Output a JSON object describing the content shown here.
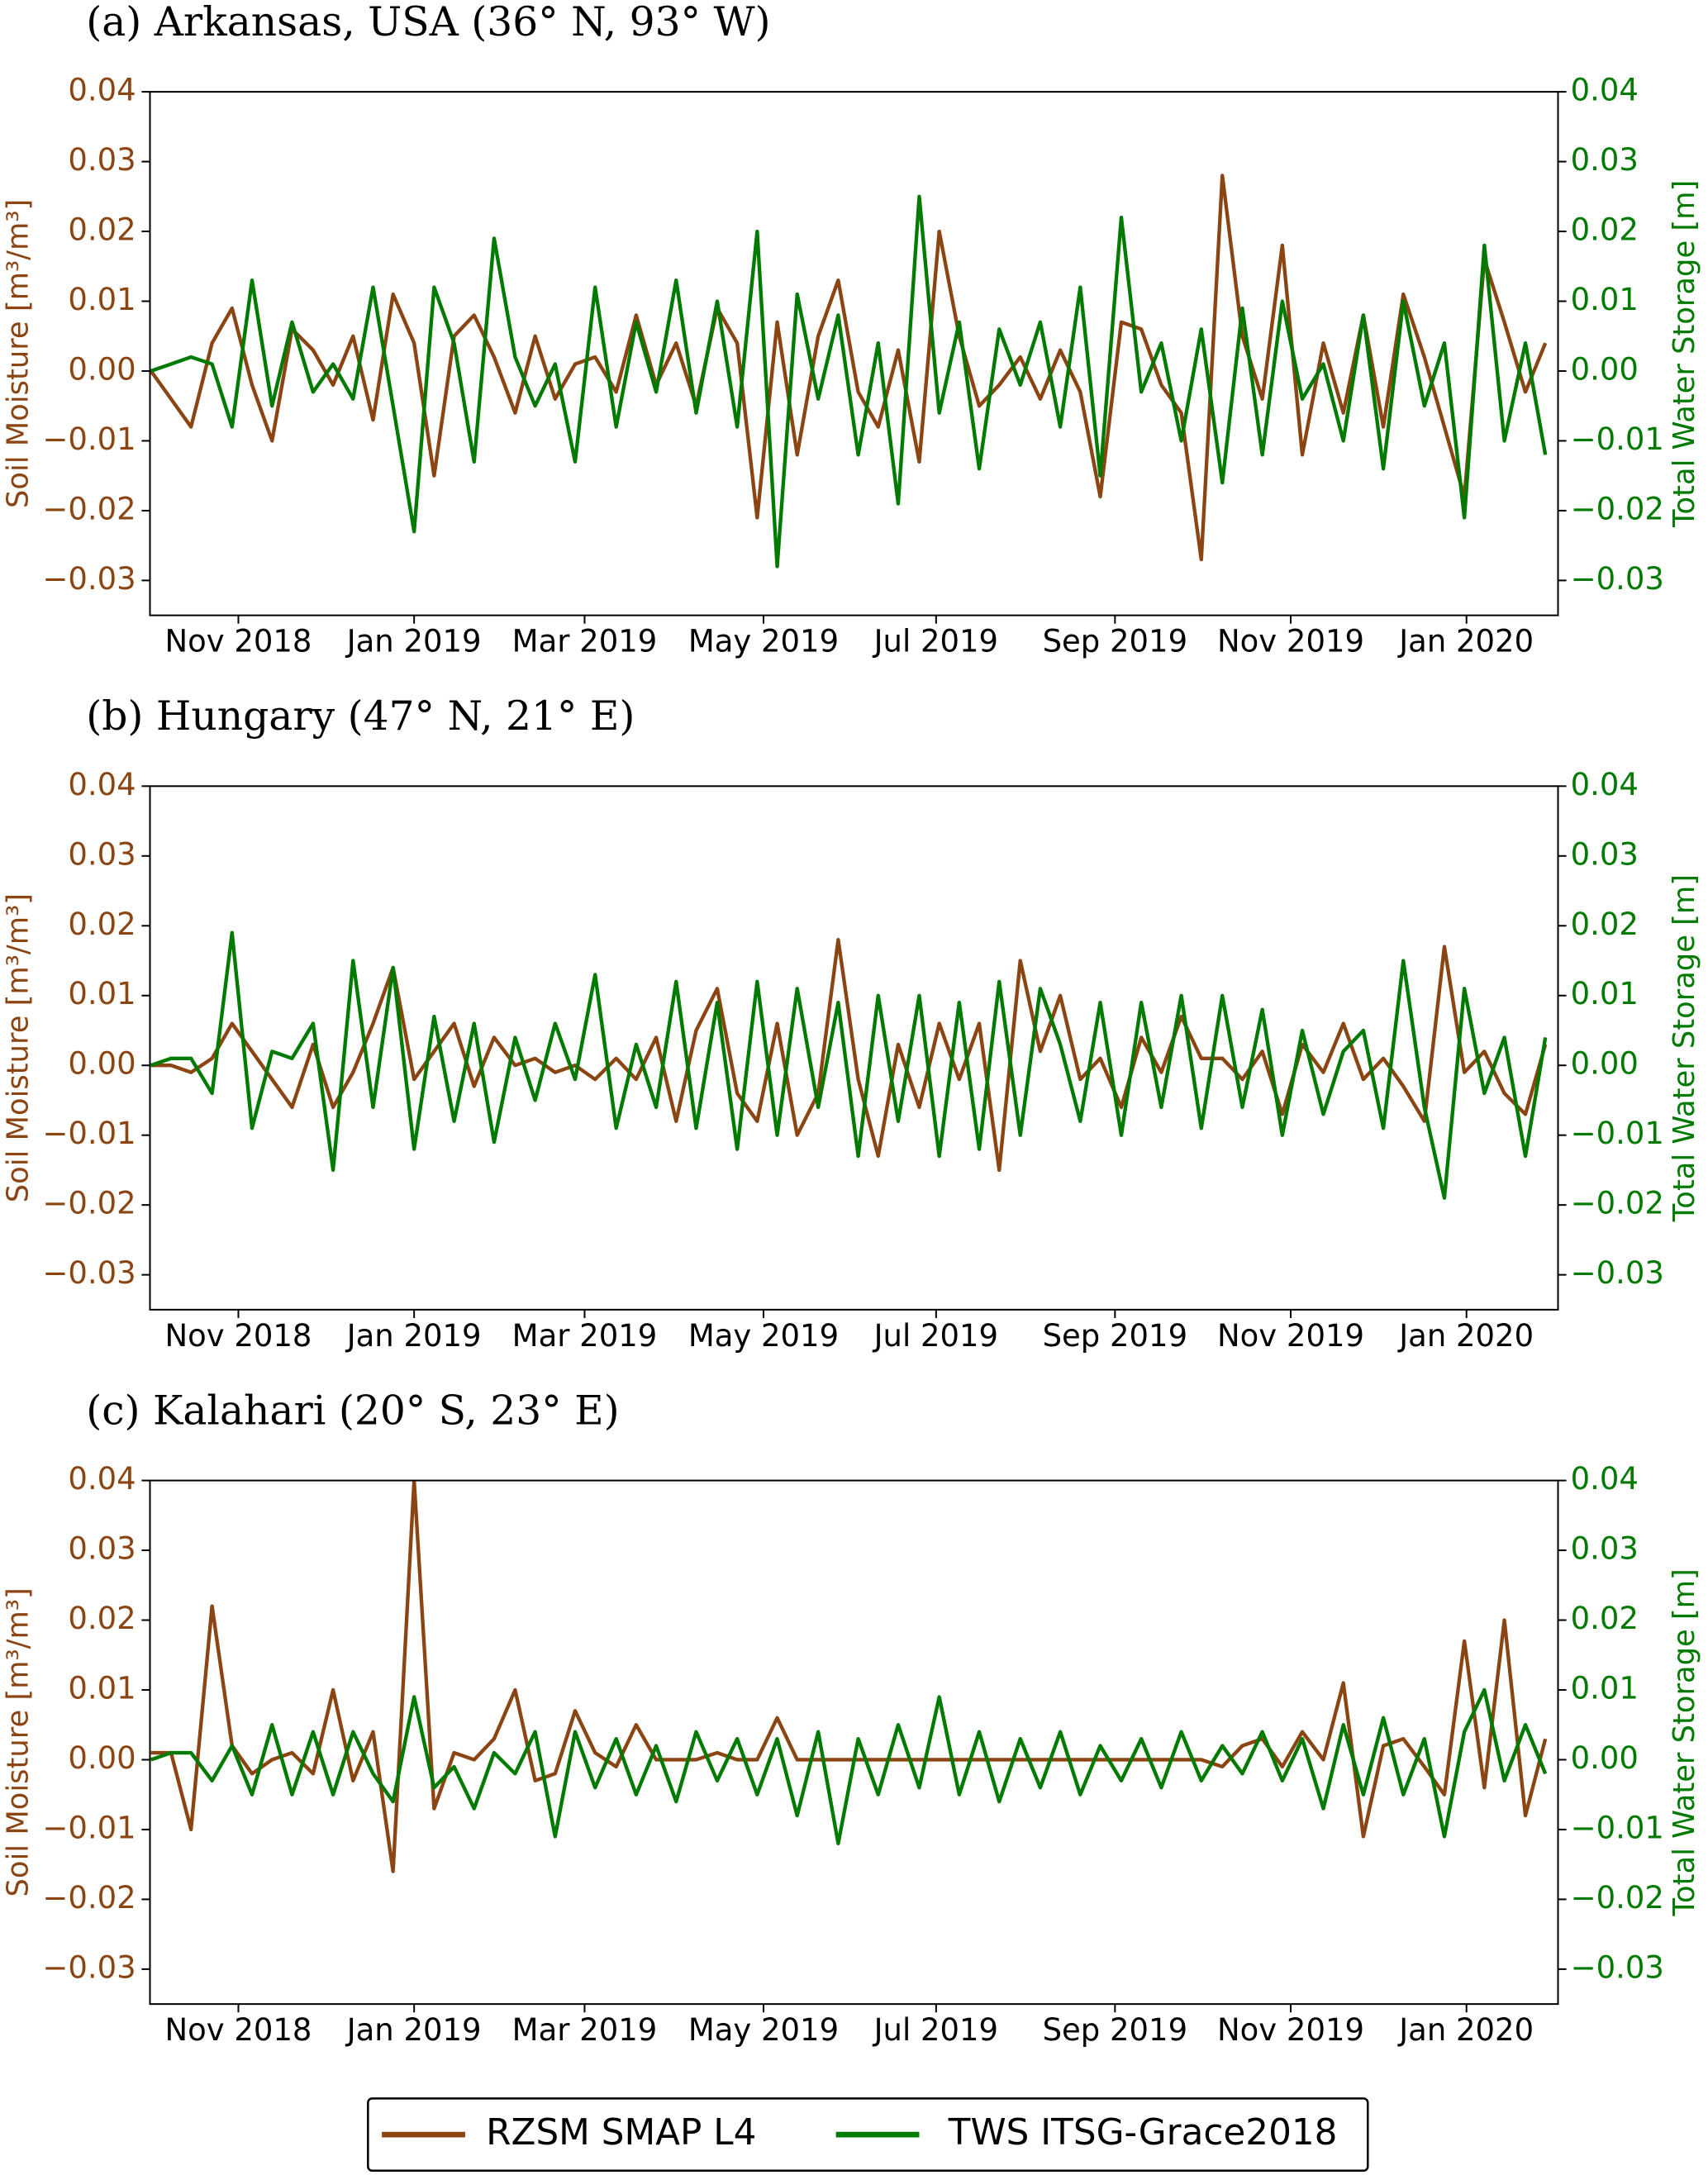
{
  "chart_data": [
    {
      "type": "line",
      "title": "(a) Arkansas, USA (36° N, 93° W)",
      "ylabel": "Soil Moisture [m³/m³]",
      "y2label": "Total Water Storage [m]",
      "x": [
        2018.75,
        2018.769,
        2018.788,
        2018.808,
        2018.827,
        2018.846,
        2018.865,
        2018.884,
        2018.904,
        2018.923,
        2018.942,
        2018.961,
        2018.98,
        2019.0,
        2019.019,
        2019.038,
        2019.057,
        2019.076,
        2019.096,
        2019.115,
        2019.134,
        2019.153,
        2019.172,
        2019.192,
        2019.211,
        2019.23,
        2019.249,
        2019.268,
        2019.288,
        2019.307,
        2019.326,
        2019.345,
        2019.364,
        2019.384,
        2019.403,
        2019.422,
        2019.441,
        2019.46,
        2019.48,
        2019.499,
        2019.518,
        2019.537,
        2019.556,
        2019.576,
        2019.595,
        2019.614,
        2019.633,
        2019.652,
        2019.672,
        2019.691,
        2019.71,
        2019.729,
        2019.748,
        2019.768,
        2019.787,
        2019.806,
        2019.825,
        2019.844,
        2019.864,
        2019.883,
        2019.902,
        2019.921,
        2019.94,
        2019.96,
        2019.979,
        2019.998,
        2020.017,
        2020.036,
        2020.056,
        2020.075
      ],
      "xlim": [
        2018.749,
        2020.087
      ],
      "xticks": [
        {
          "value": 2018.833,
          "label": "Nov 2018"
        },
        {
          "value": 2019.0,
          "label": "Jan 2019"
        },
        {
          "value": 2019.162,
          "label": "Mar 2019"
        },
        {
          "value": 2019.332,
          "label": "May 2019"
        },
        {
          "value": 2019.496,
          "label": "Jul 2019"
        },
        {
          "value": 2019.666,
          "label": "Sep 2019"
        },
        {
          "value": 2019.833,
          "label": "Nov 2019"
        },
        {
          "value": 2020.0,
          "label": "Jan 2020"
        }
      ],
      "ylim": [
        -0.035,
        0.04
      ],
      "yticks": [
        {
          "value": -0.03,
          "label": "−0.03"
        },
        {
          "value": -0.02,
          "label": "−0.02"
        },
        {
          "value": -0.01,
          "label": "−0.01"
        },
        {
          "value": 0,
          "label": "0.00"
        },
        0.01,
        0.02,
        0.03,
        0.04
      ],
      "y2lim": [
        -0.035,
        0.04
      ],
      "y2ticks": [
        {
          "value": -0.03,
          "label": "−0.03"
        },
        {
          "value": -0.02,
          "label": "−0.02"
        },
        {
          "value": -0.01,
          "label": "−0.01"
        },
        {
          "value": 0,
          "label": "0.00"
        },
        0.01,
        0.02,
        0.03,
        0.04
      ],
      "series": [
        {
          "name": "RZSM SMAP L4",
          "color": "#8b4513",
          "values": [
            0,
            -0.004,
            -0.008,
            0.004,
            0.009,
            -0.002,
            -0.01,
            0.006,
            0.003,
            -0.002,
            0.005,
            -0.007,
            0.011,
            0.004,
            -0.015,
            0.005,
            0.008,
            0.002,
            -0.006,
            0.005,
            -0.004,
            0.001,
            0.002,
            -0.003,
            0.008,
            -0.002,
            0.004,
            -0.005,
            0.009,
            0.004,
            -0.021,
            0.007,
            -0.012,
            0.005,
            0.013,
            -0.003,
            -0.008,
            0.003,
            -0.013,
            0.02,
            0.005,
            -0.005,
            -0.002,
            0.002,
            -0.004,
            0.003,
            -0.003,
            -0.018,
            0.007,
            0.006,
            -0.002,
            -0.006,
            -0.027,
            0.028,
            0.005,
            -0.004,
            0.018,
            -0.012,
            0.004,
            -0.006,
            0.008,
            -0.008,
            0.011,
            0.002,
            -0.008,
            -0.018,
            0.016,
            0.007,
            -0.003,
            0.004
          ]
        },
        {
          "name": "TWS ITSG-Grace2018",
          "color": "#007a00",
          "axis": "y2",
          "values": [
            0,
            0.001,
            0.002,
            0.001,
            -0.008,
            0.013,
            -0.005,
            0.007,
            -0.003,
            0.001,
            -0.004,
            0.012,
            -0.005,
            -0.023,
            0.012,
            0.004,
            -0.013,
            0.019,
            0.002,
            -0.005,
            0.001,
            -0.013,
            0.012,
            -0.008,
            0.007,
            -0.003,
            0.013,
            -0.006,
            0.01,
            -0.008,
            0.02,
            -0.028,
            0.011,
            -0.004,
            0.008,
            -0.012,
            0.004,
            -0.019,
            0.025,
            -0.006,
            0.007,
            -0.014,
            0.006,
            -0.002,
            0.007,
            -0.008,
            0.012,
            -0.015,
            0.022,
            -0.003,
            0.004,
            -0.01,
            0.006,
            -0.016,
            0.009,
            -0.012,
            0.01,
            -0.004,
            0.001,
            -0.01,
            0.008,
            -0.014,
            0.01,
            -0.005,
            0.004,
            -0.021,
            0.018,
            -0.01,
            0.004,
            -0.012
          ]
        }
      ]
    },
    {
      "type": "line",
      "title": "(b) Hungary (47° N, 21° E)",
      "ylabel": "Soil Moisture [m³/m³]",
      "y2label": "Total Water Storage [m]",
      "x": [
        2018.75,
        2018.769,
        2018.788,
        2018.808,
        2018.827,
        2018.846,
        2018.865,
        2018.884,
        2018.904,
        2018.923,
        2018.942,
        2018.961,
        2018.98,
        2019.0,
        2019.019,
        2019.038,
        2019.057,
        2019.076,
        2019.096,
        2019.115,
        2019.134,
        2019.153,
        2019.172,
        2019.192,
        2019.211,
        2019.23,
        2019.249,
        2019.268,
        2019.288,
        2019.307,
        2019.326,
        2019.345,
        2019.364,
        2019.384,
        2019.403,
        2019.422,
        2019.441,
        2019.46,
        2019.48,
        2019.499,
        2019.518,
        2019.537,
        2019.556,
        2019.576,
        2019.595,
        2019.614,
        2019.633,
        2019.652,
        2019.672,
        2019.691,
        2019.71,
        2019.729,
        2019.748,
        2019.768,
        2019.787,
        2019.806,
        2019.825,
        2019.844,
        2019.864,
        2019.883,
        2019.902,
        2019.921,
        2019.94,
        2019.96,
        2019.979,
        2019.998,
        2020.017,
        2020.036,
        2020.056,
        2020.075
      ],
      "xlim": [
        2018.749,
        2020.087
      ],
      "xticks": [
        {
          "value": 2018.833,
          "label": "Nov 2018"
        },
        {
          "value": 2019.0,
          "label": "Jan 2019"
        },
        {
          "value": 2019.162,
          "label": "Mar 2019"
        },
        {
          "value": 2019.332,
          "label": "May 2019"
        },
        {
          "value": 2019.496,
          "label": "Jul 2019"
        },
        {
          "value": 2019.666,
          "label": "Sep 2019"
        },
        {
          "value": 2019.833,
          "label": "Nov 2019"
        },
        {
          "value": 2020.0,
          "label": "Jan 2020"
        }
      ],
      "ylim": [
        -0.035,
        0.04
      ],
      "yticks": [
        {
          "value": -0.03,
          "label": "−0.03"
        },
        {
          "value": -0.02,
          "label": "−0.02"
        },
        {
          "value": -0.01,
          "label": "−0.01"
        },
        {
          "value": 0,
          "label": "0.00"
        },
        0.01,
        0.02,
        0.03,
        0.04
      ],
      "y2lim": [
        -0.035,
        0.04
      ],
      "y2ticks": [
        {
          "value": -0.03,
          "label": "−0.03"
        },
        {
          "value": -0.02,
          "label": "−0.02"
        },
        {
          "value": -0.01,
          "label": "−0.01"
        },
        {
          "value": 0,
          "label": "0.00"
        },
        0.01,
        0.02,
        0.03,
        0.04
      ],
      "series": [
        {
          "color": "#8b4513",
          "values": [
            0,
            0,
            -0.001,
            0.001,
            0.006,
            0.002,
            -0.002,
            -0.006,
            0.003,
            -0.006,
            -0.001,
            0.006,
            0.014,
            -0.002,
            0.002,
            0.006,
            -0.003,
            0.004,
            0,
            0.001,
            -0.001,
            0,
            -0.002,
            0.001,
            -0.002,
            0.004,
            -0.008,
            0.005,
            0.011,
            -0.004,
            -0.008,
            0.006,
            -0.01,
            -0.004,
            0.018,
            -0.002,
            -0.013,
            0.003,
            -0.006,
            0.006,
            -0.002,
            0.006,
            -0.015,
            0.015,
            0.002,
            0.01,
            -0.002,
            0.001,
            -0.006,
            0.004,
            -0.001,
            0.007,
            0.001,
            0.001,
            -0.002,
            0.002,
            -0.007,
            0.003,
            -0.001,
            0.006,
            -0.002,
            0.001,
            -0.003,
            -0.008,
            0.017,
            -0.001,
            0.002,
            -0.004,
            -0.007,
            0.003
          ]
        },
        {
          "color": "#007a00",
          "axis": "y2",
          "values": [
            0,
            0.001,
            0.001,
            -0.004,
            0.019,
            -0.009,
            0.002,
            0.001,
            0.006,
            -0.015,
            0.015,
            -0.006,
            0.014,
            -0.012,
            0.007,
            -0.008,
            0.006,
            -0.011,
            0.004,
            -0.005,
            0.006,
            -0.002,
            0.013,
            -0.009,
            0.003,
            -0.006,
            0.012,
            -0.009,
            0.009,
            -0.012,
            0.012,
            -0.01,
            0.011,
            -0.006,
            0.009,
            -0.013,
            0.01,
            -0.008,
            0.01,
            -0.013,
            0.009,
            -0.012,
            0.012,
            -0.01,
            0.011,
            0.003,
            -0.008,
            0.009,
            -0.01,
            0.009,
            -0.006,
            0.01,
            -0.009,
            0.01,
            -0.006,
            0.008,
            -0.01,
            0.005,
            -0.007,
            0.002,
            0.005,
            -0.009,
            0.015,
            -0.006,
            -0.019,
            0.011,
            -0.004,
            0.004,
            -0.013,
            0.004
          ]
        }
      ]
    },
    {
      "type": "line",
      "title": "(c) Kalahari (20° S, 23° E)",
      "ylabel": "Soil Moisture [m³/m³]",
      "y2label": "Total Water Storage [m]",
      "x": [
        2018.75,
        2018.769,
        2018.788,
        2018.808,
        2018.827,
        2018.846,
        2018.865,
        2018.884,
        2018.904,
        2018.923,
        2018.942,
        2018.961,
        2018.98,
        2019.0,
        2019.019,
        2019.038,
        2019.057,
        2019.076,
        2019.096,
        2019.115,
        2019.134,
        2019.153,
        2019.172,
        2019.192,
        2019.211,
        2019.23,
        2019.249,
        2019.268,
        2019.288,
        2019.307,
        2019.326,
        2019.345,
        2019.364,
        2019.384,
        2019.403,
        2019.422,
        2019.441,
        2019.46,
        2019.48,
        2019.499,
        2019.518,
        2019.537,
        2019.556,
        2019.576,
        2019.595,
        2019.614,
        2019.633,
        2019.652,
        2019.672,
        2019.691,
        2019.71,
        2019.729,
        2019.748,
        2019.768,
        2019.787,
        2019.806,
        2019.825,
        2019.844,
        2019.864,
        2019.883,
        2019.902,
        2019.921,
        2019.94,
        2019.96,
        2019.979,
        2019.998,
        2020.017,
        2020.036,
        2020.056,
        2020.075
      ],
      "xlim": [
        2018.749,
        2020.087
      ],
      "xticks": [
        {
          "value": 2018.833,
          "label": "Nov 2018"
        },
        {
          "value": 2019.0,
          "label": "Jan 2019"
        },
        {
          "value": 2019.162,
          "label": "Mar 2019"
        },
        {
          "value": 2019.332,
          "label": "May 2019"
        },
        {
          "value": 2019.496,
          "label": "Jul 2019"
        },
        {
          "value": 2019.666,
          "label": "Sep 2019"
        },
        {
          "value": 2019.833,
          "label": "Nov 2019"
        },
        {
          "value": 2020.0,
          "label": "Jan 2020"
        }
      ],
      "ylim": [
        -0.035,
        0.04
      ],
      "yticks": [
        {
          "value": -0.03,
          "label": "−0.03"
        },
        {
          "value": -0.02,
          "label": "−0.02"
        },
        {
          "value": -0.01,
          "label": "−0.01"
        },
        {
          "value": 0,
          "label": "0.00"
        },
        0.01,
        0.02,
        0.03,
        0.04
      ],
      "y2lim": [
        -0.035,
        0.04
      ],
      "y2ticks": [
        {
          "value": -0.03,
          "label": "−0.03"
        },
        {
          "value": -0.02,
          "label": "−0.02"
        },
        {
          "value": -0.01,
          "label": "−0.01"
        },
        {
          "value": 0,
          "label": "0.00"
        },
        0.01,
        0.02,
        0.03,
        0.04
      ],
      "series": [
        {
          "color": "#8b4513",
          "values": [
            0.001,
            0.001,
            -0.01,
            0.022,
            0.002,
            -0.002,
            0,
            0.001,
            -0.002,
            0.01,
            -0.003,
            0.004,
            -0.016,
            0.04,
            -0.007,
            0.001,
            0,
            0.003,
            0.01,
            -0.003,
            -0.002,
            0.007,
            0.001,
            -0.001,
            0.005,
            0,
            0,
            0,
            0.001,
            0,
            0,
            0.006,
            0,
            0,
            0,
            0,
            0,
            0,
            0,
            0,
            0,
            0,
            0,
            0,
            0,
            0,
            0,
            0,
            0,
            0,
            0,
            0,
            0,
            -0.001,
            0.002,
            0.003,
            -0.001,
            0.004,
            0,
            0.011,
            -0.011,
            0.002,
            0.003,
            -0.001,
            -0.005,
            0.017,
            -0.004,
            0.02,
            -0.008,
            0.003
          ]
        },
        {
          "color": "#007a00",
          "axis": "y2",
          "values": [
            0,
            0.001,
            0.001,
            -0.003,
            0.002,
            -0.005,
            0.005,
            -0.005,
            0.004,
            -0.005,
            0.004,
            -0.002,
            -0.006,
            0.009,
            -0.004,
            -0.001,
            -0.007,
            0.001,
            -0.002,
            0.004,
            -0.011,
            0.004,
            -0.004,
            0.003,
            -0.005,
            0.002,
            -0.006,
            0.004,
            -0.003,
            0.003,
            -0.005,
            0.003,
            -0.008,
            0.004,
            -0.012,
            0.003,
            -0.005,
            0.005,
            -0.004,
            0.009,
            -0.005,
            0.004,
            -0.006,
            0.003,
            -0.004,
            0.004,
            -0.005,
            0.002,
            -0.003,
            0.003,
            -0.004,
            0.004,
            -0.003,
            0.002,
            -0.002,
            0.004,
            -0.003,
            0.003,
            -0.007,
            0.005,
            -0.005,
            0.006,
            -0.005,
            0.003,
            -0.011,
            0.004,
            0.01,
            -0.003,
            0.005,
            -0.002
          ]
        }
      ]
    }
  ]
}
